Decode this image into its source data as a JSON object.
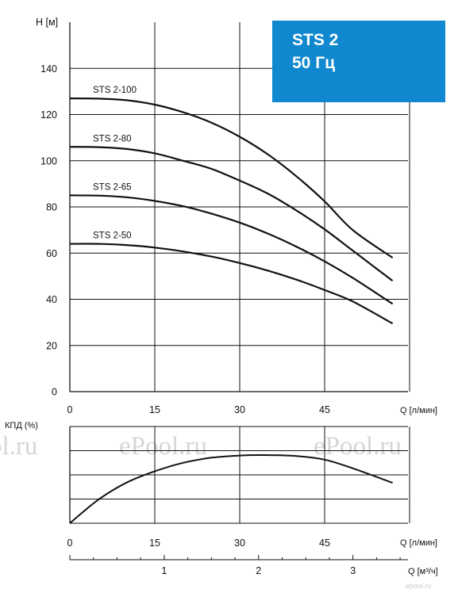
{
  "chart_data": [
    {
      "type": "line",
      "title": "STS 2",
      "subtitle": "50 Гц",
      "ylabel": "H [м]",
      "xlabel": "Q [л/мин]",
      "xlim": [
        0,
        60
      ],
      "ylim": [
        0,
        160
      ],
      "xticks": [
        0,
        15,
        30,
        45
      ],
      "yticks": [
        0,
        20,
        40,
        60,
        80,
        100,
        120,
        140
      ],
      "grid": true,
      "series": [
        {
          "name": "STS 2-100",
          "x": [
            0,
            5,
            10,
            15,
            20,
            25,
            30,
            35,
            40,
            45,
            50,
            57
          ],
          "y": [
            127,
            126.9,
            126.2,
            124.3,
            121,
            116.5,
            110.4,
            102.7,
            93.3,
            82.4,
            69.9,
            58
          ]
        },
        {
          "name": "STS 2-80",
          "x": [
            0,
            5,
            10,
            15,
            20,
            25,
            30,
            35,
            40,
            45,
            50,
            57
          ],
          "y": [
            106,
            105.9,
            105.1,
            103.2,
            100,
            96.5,
            91.4,
            85.7,
            78.5,
            70.3,
            61,
            48
          ]
        },
        {
          "name": "STS 2-65",
          "x": [
            0,
            5,
            10,
            15,
            20,
            25,
            30,
            35,
            40,
            45,
            50,
            57
          ],
          "y": [
            85,
            84.9,
            84.2,
            82.6,
            80.3,
            77.1,
            73.2,
            68.4,
            62.8,
            56.4,
            49.2,
            38
          ]
        },
        {
          "name": "STS 2-50",
          "x": [
            0,
            5,
            10,
            15,
            20,
            25,
            30,
            35,
            40,
            45,
            50,
            57
          ],
          "y": [
            64,
            64,
            63.5,
            62.4,
            60.7,
            58.5,
            55.7,
            52.4,
            48.5,
            44,
            39,
            29.5
          ]
        }
      ]
    },
    {
      "type": "line",
      "ylabel": "КПД (%)",
      "xlabel": "Q [л/мин]",
      "xlabel2": "Q [м³/ч]",
      "xlim": [
        0,
        60
      ],
      "ylim": [
        0,
        4
      ],
      "xticks": [
        0,
        15,
        30,
        45
      ],
      "x2ticks": [
        1,
        2,
        3
      ],
      "grid": true,
      "series": [
        {
          "x": [
            0,
            5,
            10,
            15,
            20,
            25,
            30,
            34,
            40,
            45,
            50,
            57
          ],
          "y": [
            0,
            0.97,
            1.68,
            2.15,
            2.5,
            2.71,
            2.8,
            2.82,
            2.78,
            2.63,
            2.27,
            1.67
          ]
        }
      ]
    }
  ],
  "watermarks": [
    "ol.ru",
    "ePool.ru",
    "ePool.ru"
  ],
  "site_mark": "epool.ru"
}
